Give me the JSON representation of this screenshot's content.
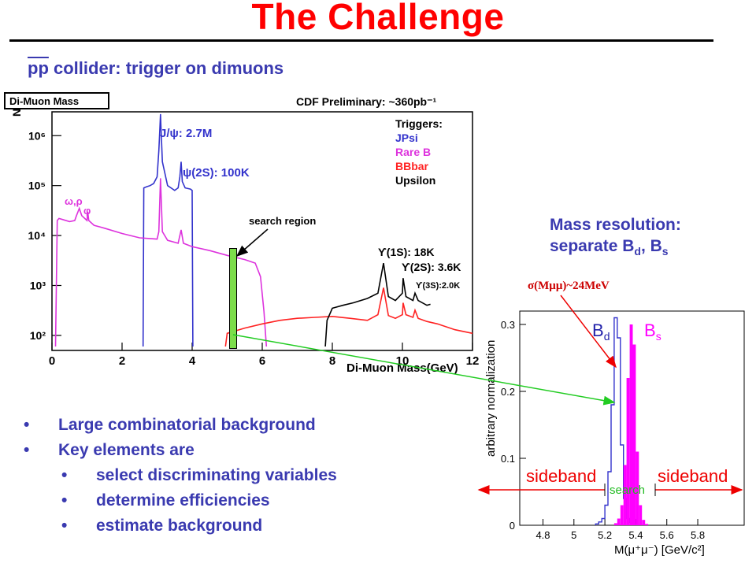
{
  "slide": {
    "title": "The Challenge",
    "subtitle_pbar": "pp",
    "subtitle_rest": " collider:  trigger on dimuons",
    "mass_resolution": {
      "line1": "Mass resolution:",
      "line2_prefix": "separate B",
      "line2_sub1": "d",
      "line2_mid": ", B",
      "line2_sub2": "s"
    },
    "bullets": [
      {
        "text": "Large combinatorial background",
        "sub": []
      },
      {
        "text": "Key elements are",
        "sub": [
          "select discriminating variables",
          "determine efficiencies",
          "estimate background"
        ]
      }
    ],
    "search_region_label": "search region",
    "sigma_label": "σ(Mμμ)~24MeV"
  },
  "chart_data": [
    {
      "type": "line",
      "panel_title": "Di-Muon Mass",
      "title": "CDF Preliminary: ~360pb⁻¹",
      "xlabel": "Di-Muon Mass(GeV)",
      "ylabel": "N",
      "xlim": [
        0,
        12
      ],
      "ylim": [
        50,
        3000000
      ],
      "yscale": "log",
      "x_ticks": [
        "0",
        "2",
        "4",
        "6",
        "8",
        "10",
        "12"
      ],
      "y_ticks": [
        "10²",
        "10³",
        "10⁴",
        "10⁵",
        "10⁶"
      ],
      "legend": {
        "position": "top-right",
        "header": "Triggers:",
        "entries": [
          {
            "name": "JPsi",
            "color": "#3333cc"
          },
          {
            "name": "Rare B",
            "color": "#dd33dd"
          },
          {
            "name": "BBbar",
            "color": "#ff2222"
          },
          {
            "name": "Upsilon",
            "color": "#000000"
          }
        ]
      },
      "annotations": [
        "J/ψ: 2.7M",
        "ψ(2S): 100K",
        "ω,ρ",
        "φ",
        "ϒ(1S): 18K",
        "ϒ(2S): 3.6K",
        "ϒ(3S):2.0K"
      ],
      "series": [
        {
          "name": "JPsi",
          "color": "#3333cc",
          "x": [
            2.6,
            2.62,
            2.7,
            2.8,
            2.9,
            3.0,
            3.05,
            3.08,
            3.097,
            3.11,
            3.15,
            3.3,
            3.5,
            3.6,
            3.65,
            3.686,
            3.72,
            3.8,
            3.95,
            4.0,
            4.02
          ],
          "y": [
            60,
            90000,
            95000,
            100000,
            110000,
            150000,
            500000,
            1500000,
            2700000,
            1500000,
            300000,
            100000,
            80000,
            90000,
            150000,
            300000,
            120000,
            90000,
            85000,
            80000,
            60
          ]
        },
        {
          "name": "Rare B",
          "color": "#dd33dd",
          "x": [
            0.1,
            0.15,
            0.2,
            0.3,
            0.5,
            0.65,
            0.7,
            0.78,
            0.85,
            1.0,
            1.02,
            1.05,
            1.2,
            1.5,
            2.0,
            2.5,
            3.0,
            3.05,
            3.097,
            3.15,
            3.3,
            3.6,
            3.686,
            3.75,
            4.0,
            4.5,
            5.0,
            5.5,
            5.8,
            5.95,
            6.05,
            6.12
          ],
          "y": [
            60,
            20000,
            22000,
            21000,
            19000,
            20000,
            25000,
            35000,
            25000,
            20000,
            30000,
            20000,
            16000,
            14000,
            11000,
            9000,
            8500,
            12000,
            140000,
            12000,
            8000,
            7000,
            13000,
            7000,
            6000,
            5000,
            4000,
            3300,
            2800,
            1500,
            300,
            60
          ]
        },
        {
          "name": "BBbar",
          "color": "#ff2222",
          "x": [
            4.95,
            5.0,
            5.5,
            6.0,
            6.5,
            7.0,
            7.5,
            8.0,
            8.5,
            9.0,
            9.3,
            9.46,
            9.6,
            9.8,
            10.0,
            10.02,
            10.1,
            10.3,
            10.36,
            10.45,
            10.7,
            11.0,
            11.5,
            12.0
          ],
          "y": [
            60,
            110,
            140,
            170,
            200,
            220,
            230,
            240,
            220,
            200,
            260,
            900,
            250,
            220,
            260,
            450,
            260,
            230,
            320,
            220,
            190,
            170,
            130,
            110
          ]
        },
        {
          "name": "Upsilon",
          "color": "#000000",
          "x": [
            7.8,
            7.85,
            8.0,
            8.3,
            8.6,
            9.0,
            9.3,
            9.46,
            9.6,
            9.8,
            10.0,
            10.02,
            10.1,
            10.3,
            10.36,
            10.45,
            10.7,
            10.8
          ],
          "y": [
            60,
            200,
            350,
            400,
            450,
            550,
            700,
            2800,
            600,
            500,
            700,
            1400,
            600,
            500,
            700,
            500,
            400,
            420
          ]
        }
      ],
      "search_region_x": [
        5.0,
        5.6
      ]
    },
    {
      "type": "bar",
      "xlabel": "M(μ⁺μ⁻)  [GeV/c²]",
      "ylabel": "arbitrary normalization",
      "xlim": [
        4.65,
        6.1
      ],
      "ylim": [
        0,
        0.32
      ],
      "x_ticks": [
        "4.8",
        "5",
        "5.2",
        "5.4",
        "5.6",
        "5.8"
      ],
      "y_ticks": [
        "0",
        "0.1",
        "0.2",
        "0.3"
      ],
      "region_labels": [
        "sideband",
        "search",
        "sideband"
      ],
      "series": [
        {
          "name": "Bd",
          "color": "#3333cc",
          "style": "outline",
          "x": [
            5.15,
            5.17,
            5.19,
            5.21,
            5.23,
            5.25,
            5.27,
            5.29,
            5.31,
            5.33,
            5.35,
            5.37,
            5.39
          ],
          "y": [
            0.002,
            0.005,
            0.01,
            0.03,
            0.08,
            0.18,
            0.31,
            0.28,
            0.12,
            0.04,
            0.01,
            0.004,
            0.001
          ]
        },
        {
          "name": "Bs",
          "color": "#ff00ff",
          "style": "filled",
          "x": [
            5.27,
            5.29,
            5.31,
            5.33,
            5.35,
            5.37,
            5.39,
            5.41,
            5.43,
            5.45,
            5.47
          ],
          "y": [
            0.003,
            0.01,
            0.03,
            0.09,
            0.22,
            0.3,
            0.27,
            0.11,
            0.03,
            0.008,
            0.002
          ]
        }
      ]
    }
  ]
}
